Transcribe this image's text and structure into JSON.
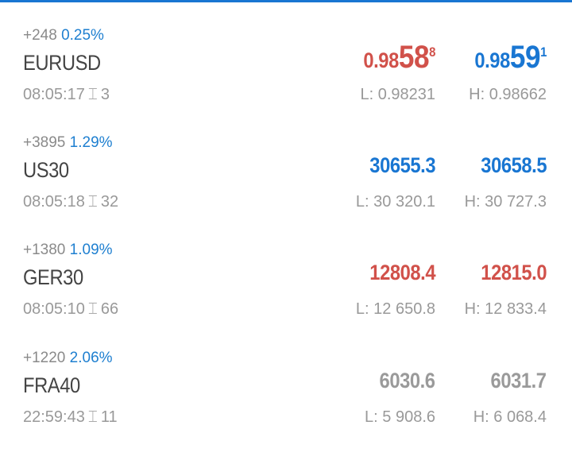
{
  "colors": {
    "accent": "#1976d2",
    "down": "#d1514a",
    "neutral": "#9a9a9a"
  },
  "quotes": [
    {
      "change": "+248",
      "percent": "0.25%",
      "symbol": "EURUSD",
      "time": "08:05:17",
      "spread": "3",
      "bid": {
        "prefix": "0.98",
        "big": "58",
        "sup": "8",
        "color": "red"
      },
      "ask": {
        "prefix": "0.98",
        "big": "59",
        "sup": "1",
        "color": "blue"
      },
      "low": "L: 0.98231",
      "high": "H: 0.98662"
    },
    {
      "change": "+3895",
      "percent": "1.29%",
      "symbol": "US30",
      "time": "08:05:18",
      "spread": "32",
      "bid": {
        "value": "30655.3",
        "color": "blue"
      },
      "ask": {
        "value": "30658.5",
        "color": "blue"
      },
      "low": "L: 30 320.1",
      "high": "H: 30 727.3"
    },
    {
      "change": "+1380",
      "percent": "1.09%",
      "symbol": "GER30",
      "time": "08:05:10",
      "spread": "66",
      "bid": {
        "value": "12808.4",
        "color": "red"
      },
      "ask": {
        "value": "12815.0",
        "color": "red"
      },
      "low": "L: 12 650.8",
      "high": "H: 12 833.4"
    },
    {
      "change": "+1220",
      "percent": "2.06%",
      "symbol": "FRA40",
      "time": "22:59:43",
      "spread": "11",
      "bid": {
        "value": "6030.6",
        "color": "gray"
      },
      "ask": {
        "value": "6031.7",
        "color": "gray"
      },
      "low": "L: 5 908.6",
      "high": "H: 6 068.4"
    }
  ]
}
